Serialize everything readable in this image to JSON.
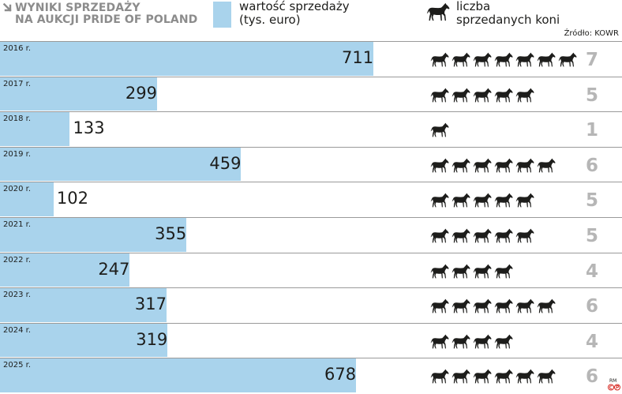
{
  "header": {
    "title_line1": "WYNIKI SPRZEDAŻY",
    "title_line2": "NA AUKCJI PRIDE OF POLAND",
    "icon": "arrow-down-right-icon"
  },
  "legend": {
    "value_line1": "wartość sprzedaży",
    "value_line2": "(tys. euro)",
    "count_line1": "liczba",
    "count_line2": "sprzedanych koni",
    "horse_icon": "horse-icon"
  },
  "source": "Źródło: KOWR",
  "credit": "RM",
  "colors": {
    "bar": "#a9d3ec",
    "count": "#b6b6b6",
    "title": "#8c8c8c",
    "horse": "#1d1d1b"
  },
  "chart_data": {
    "type": "bar",
    "orientation": "horizontal",
    "categories": [
      "2016 r.",
      "2017 r.",
      "2018 r.",
      "2019 r.",
      "2020 r.",
      "2021 r.",
      "2022 r.",
      "2023 r.",
      "2024 r.",
      "2025 r."
    ],
    "series": [
      {
        "name": "wartość sprzedaży (tys. euro)",
        "values": [
          711,
          299,
          133,
          459,
          102,
          355,
          247,
          317,
          319,
          678
        ]
      },
      {
        "name": "liczba sprzedanych koni",
        "values": [
          7,
          5,
          1,
          6,
          5,
          5,
          4,
          6,
          4,
          6
        ]
      }
    ],
    "xlim": [
      0,
      1184
    ],
    "grid": false,
    "legend": "top"
  }
}
